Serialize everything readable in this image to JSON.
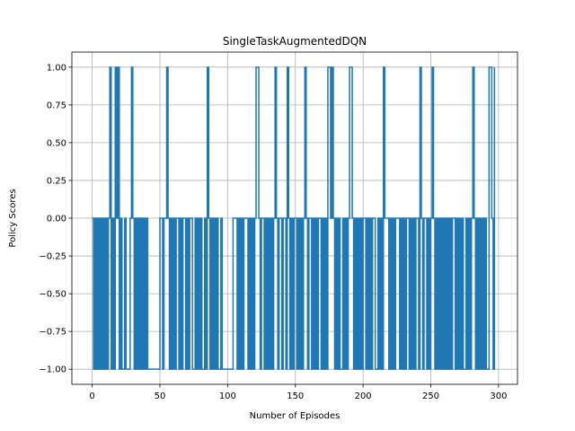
{
  "chart_data": {
    "type": "line",
    "title": "SingleTaskAugmentedDQN",
    "xlabel": "Number of Episodes",
    "ylabel": "Policy Scores",
    "xlim": [
      -15,
      314
    ],
    "ylim": [
      -1.1,
      1.1
    ],
    "grid": true,
    "line_style": "step",
    "xticks": [
      0,
      50,
      100,
      150,
      200,
      250,
      300
    ],
    "xtick_labels": [
      "0",
      "50",
      "100",
      "150",
      "200",
      "250",
      "300"
    ],
    "yticks": [
      -1.0,
      -0.75,
      -0.5,
      -0.25,
      0.0,
      0.25,
      0.5,
      0.75,
      1.0
    ],
    "ytick_labels": [
      "−1.00",
      "−0.75",
      "−0.50",
      "−0.25",
      "0.00",
      "0.25",
      "0.50",
      "0.75",
      "1.00"
    ],
    "series": [
      {
        "color": "#1f77b4",
        "x_start": 0,
        "values": [
          0,
          -1,
          0,
          -1,
          0,
          -1,
          0,
          -1,
          0,
          -1,
          0,
          -1,
          0,
          1,
          -1,
          0,
          -1,
          1,
          0,
          1,
          -1,
          0,
          -1,
          -1,
          0,
          -1,
          -1,
          -1,
          0,
          1,
          0,
          -1,
          0,
          -1,
          0,
          -1,
          0,
          -1,
          0,
          -1,
          0,
          -1,
          -1,
          -1,
          -1,
          -1,
          -1,
          -1,
          -1,
          -1,
          0,
          0,
          -1,
          0,
          0,
          1,
          0,
          -1,
          0,
          -1,
          0,
          -1,
          0,
          0,
          -1,
          0,
          -1,
          0,
          0,
          -1,
          0,
          -1,
          0,
          0,
          -1,
          -1,
          0,
          -1,
          0,
          -1,
          0,
          -1,
          -1,
          0,
          -1,
          1,
          0,
          -1,
          0,
          -1,
          0,
          -1,
          0,
          -1,
          -1,
          0,
          -1,
          -1,
          -1,
          -1,
          -1,
          -1,
          -1,
          -1,
          0,
          0,
          0,
          -1,
          0,
          -1,
          0,
          -1,
          0,
          0,
          0,
          -1,
          0,
          -1,
          0,
          -1,
          0,
          1,
          1,
          0,
          -1,
          0,
          0,
          -1,
          0,
          -1,
          0,
          -1,
          0,
          -1,
          0,
          1,
          0,
          -1,
          0,
          0,
          -1,
          0,
          0,
          -1,
          1,
          0,
          -1,
          0,
          -1,
          0,
          0,
          -1,
          0,
          -1,
          0,
          -1,
          0,
          1,
          0,
          -1,
          0,
          0,
          -1,
          0,
          -1,
          0,
          -1,
          0,
          0,
          -1,
          0,
          -1,
          0,
          -1,
          1,
          1,
          0,
          1,
          0,
          -1,
          0,
          -1,
          0,
          -1,
          -1,
          0,
          -1,
          0,
          -1,
          0,
          1,
          1,
          0,
          -1,
          0,
          -1,
          0,
          -1,
          0,
          -1,
          0,
          0,
          -1,
          0,
          -1,
          0,
          -1,
          0,
          0,
          -1,
          -1,
          0,
          -1,
          0,
          -1,
          1,
          0,
          0,
          0,
          -1,
          0,
          -1,
          0,
          -1,
          0,
          0,
          0,
          -1,
          0,
          -1,
          0,
          -1,
          0,
          0,
          -1,
          0,
          -1,
          0,
          -1,
          0,
          0,
          -1,
          1,
          0,
          -1,
          0,
          0,
          -1,
          0,
          -1,
          0,
          1,
          0,
          -1,
          0,
          -1,
          0,
          -1,
          0,
          -1,
          0,
          -1,
          0,
          -1,
          0,
          -1,
          0,
          0,
          -1,
          0,
          -1,
          0,
          -1,
          0,
          -1,
          -1,
          0,
          -1,
          0,
          -1,
          0,
          1,
          0,
          -1,
          0,
          -1,
          0,
          -1,
          0,
          -1,
          0,
          -1,
          -1,
          1,
          1,
          0,
          -1,
          1
        ]
      }
    ]
  }
}
